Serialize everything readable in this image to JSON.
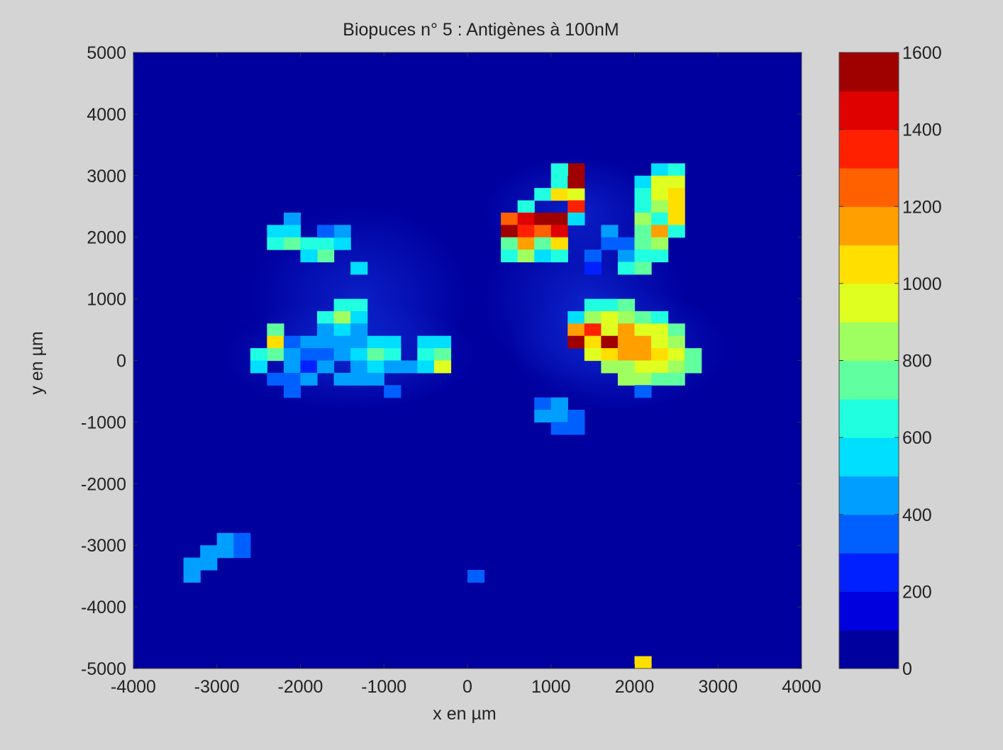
{
  "chart_data": {
    "type": "heatmap",
    "title": "Biopuces n° 5 : Antigènes à 100nM",
    "xlabel": "x en µm",
    "ylabel": "y en µm",
    "xlim": [
      -4000,
      4000
    ],
    "ylim": [
      -5000,
      5000
    ],
    "xticks": [
      -4000,
      -3000,
      -2000,
      -1000,
      0,
      1000,
      2000,
      3000,
      4000
    ],
    "yticks": [
      -5000,
      -4000,
      -3000,
      -2000,
      -1000,
      0,
      1000,
      2000,
      3000,
      4000,
      5000
    ],
    "colorbar": {
      "min": 0,
      "max": 1600,
      "levels": 16,
      "ticks": [
        0,
        200,
        400,
        600,
        800,
        1000,
        1200,
        1400,
        1600
      ],
      "colormap": "jet"
    },
    "background_value": 40,
    "cell_size_um": 200,
    "cells": [
      [
        -2100,
        2300,
        450
      ],
      [
        -2100,
        2100,
        550
      ],
      [
        -2300,
        2100,
        500
      ],
      [
        -2300,
        1900,
        600
      ],
      [
        -2100,
        1900,
        700
      ],
      [
        -1900,
        1900,
        600
      ],
      [
        -1700,
        1900,
        650
      ],
      [
        -1500,
        1900,
        550
      ],
      [
        -1700,
        1700,
        750
      ],
      [
        -1900,
        1700,
        550
      ],
      [
        -1500,
        2100,
        400
      ],
      [
        -1300,
        1500,
        500
      ],
      [
        -1700,
        2100,
        300
      ],
      [
        -2300,
        500,
        700
      ],
      [
        -2300,
        300,
        1000
      ],
      [
        -2300,
        100,
        700
      ],
      [
        -2500,
        100,
        650
      ],
      [
        -2500,
        -100,
        500
      ],
      [
        -2100,
        300,
        350
      ],
      [
        -2100,
        100,
        450
      ],
      [
        -2100,
        -100,
        400
      ],
      [
        -1900,
        300,
        400
      ],
      [
        -1900,
        100,
        350
      ],
      [
        -1900,
        -100,
        200
      ],
      [
        -1700,
        700,
        600
      ],
      [
        -1700,
        500,
        450
      ],
      [
        -1700,
        300,
        400
      ],
      [
        -1700,
        100,
        350
      ],
      [
        -1700,
        -100,
        450
      ],
      [
        -1500,
        900,
        650
      ],
      [
        -1500,
        700,
        800
      ],
      [
        -1500,
        500,
        500
      ],
      [
        -1500,
        300,
        400
      ],
      [
        -1500,
        100,
        400
      ],
      [
        -1300,
        900,
        600
      ],
      [
        -1300,
        700,
        550
      ],
      [
        -1300,
        500,
        400
      ],
      [
        -1300,
        300,
        450
      ],
      [
        -1300,
        100,
        550
      ],
      [
        -1300,
        -100,
        400
      ],
      [
        -1100,
        300,
        550
      ],
      [
        -1100,
        100,
        700
      ],
      [
        -1100,
        -100,
        500
      ],
      [
        -900,
        300,
        550
      ],
      [
        -900,
        100,
        650
      ],
      [
        -900,
        -100,
        450
      ],
      [
        -700,
        -100,
        400
      ],
      [
        -500,
        300,
        500
      ],
      [
        -500,
        100,
        650
      ],
      [
        -500,
        -100,
        500
      ],
      [
        -300,
        300,
        550
      ],
      [
        -300,
        100,
        700
      ],
      [
        -300,
        -100,
        950
      ],
      [
        -1500,
        -300,
        450
      ],
      [
        -1300,
        -300,
        400
      ],
      [
        -1100,
        -300,
        450
      ],
      [
        -900,
        -500,
        350
      ],
      [
        -2300,
        -300,
        350
      ],
      [
        -2100,
        -300,
        350
      ],
      [
        -1900,
        -300,
        400
      ],
      [
        -2100,
        -500,
        300
      ],
      [
        700,
        2500,
        600
      ],
      [
        500,
        2300,
        1250
      ],
      [
        700,
        2300,
        1400
      ],
      [
        900,
        2300,
        1500
      ],
      [
        1100,
        2300,
        1500
      ],
      [
        500,
        2100,
        1550
      ],
      [
        700,
        2100,
        1300
      ],
      [
        900,
        2100,
        1250
      ],
      [
        1100,
        2100,
        1400
      ],
      [
        500,
        1900,
        750
      ],
      [
        700,
        1900,
        1150
      ],
      [
        900,
        1900,
        700
      ],
      [
        1100,
        1900,
        1050
      ],
      [
        500,
        1700,
        600
      ],
      [
        700,
        1700,
        800
      ],
      [
        900,
        1700,
        500
      ],
      [
        1100,
        1700,
        600
      ],
      [
        900,
        2700,
        650
      ],
      [
        1100,
        2700,
        1000
      ],
      [
        1300,
        2700,
        950
      ],
      [
        1100,
        2900,
        600
      ],
      [
        1300,
        3100,
        1550
      ],
      [
        1100,
        3100,
        600
      ],
      [
        1300,
        2900,
        1550
      ],
      [
        1300,
        2500,
        1350
      ],
      [
        1300,
        2300,
        500
      ],
      [
        1700,
        2100,
        400
      ],
      [
        1700,
        1900,
        350
      ],
      [
        1500,
        1700,
        300
      ],
      [
        1500,
        1500,
        250
      ],
      [
        1900,
        1700,
        450
      ],
      [
        1900,
        1500,
        600
      ],
      [
        1900,
        1900,
        350
      ],
      [
        2100,
        2900,
        550
      ],
      [
        2100,
        2700,
        600
      ],
      [
        2100,
        2500,
        650
      ],
      [
        2100,
        2300,
        800
      ],
      [
        2100,
        2100,
        750
      ],
      [
        2100,
        1900,
        700
      ],
      [
        2100,
        1700,
        650
      ],
      [
        2100,
        1500,
        750
      ],
      [
        2300,
        3100,
        550
      ],
      [
        2300,
        2900,
        900
      ],
      [
        2300,
        2700,
        950
      ],
      [
        2300,
        2500,
        800
      ],
      [
        2300,
        2300,
        650
      ],
      [
        2300,
        2100,
        1100
      ],
      [
        2300,
        1900,
        800
      ],
      [
        2300,
        1700,
        600
      ],
      [
        2500,
        3100,
        600
      ],
      [
        2500,
        2900,
        950
      ],
      [
        2500,
        2700,
        1050
      ],
      [
        2500,
        2500,
        1000
      ],
      [
        2500,
        2300,
        1050
      ],
      [
        2500,
        2100,
        650
      ],
      [
        1500,
        900,
        650
      ],
      [
        1700,
        900,
        650
      ],
      [
        1900,
        900,
        700
      ],
      [
        1300,
        700,
        550
      ],
      [
        1500,
        700,
        850
      ],
      [
        1700,
        700,
        900
      ],
      [
        1900,
        700,
        800
      ],
      [
        2100,
        700,
        700
      ],
      [
        2300,
        700,
        600
      ],
      [
        1300,
        500,
        1100
      ],
      [
        1500,
        500,
        1350
      ],
      [
        1700,
        500,
        950
      ],
      [
        1900,
        500,
        1150
      ],
      [
        2100,
        500,
        950
      ],
      [
        2300,
        500,
        900
      ],
      [
        2500,
        500,
        700
      ],
      [
        1300,
        300,
        1500
      ],
      [
        1500,
        300,
        1000
      ],
      [
        1700,
        300,
        1500
      ],
      [
        1900,
        300,
        1150
      ],
      [
        2100,
        300,
        1100
      ],
      [
        2300,
        300,
        950
      ],
      [
        2500,
        300,
        850
      ],
      [
        1500,
        100,
        900
      ],
      [
        1700,
        100,
        1000
      ],
      [
        1900,
        100,
        1150
      ],
      [
        2100,
        100,
        1150
      ],
      [
        2300,
        100,
        1000
      ],
      [
        2500,
        100,
        900
      ],
      [
        2700,
        100,
        750
      ],
      [
        1700,
        -100,
        800
      ],
      [
        1900,
        -100,
        850
      ],
      [
        2100,
        -100,
        900
      ],
      [
        2300,
        -100,
        950
      ],
      [
        2500,
        -100,
        800
      ],
      [
        2700,
        -100,
        700
      ],
      [
        1900,
        -300,
        800
      ],
      [
        2100,
        -300,
        800
      ],
      [
        2300,
        -300,
        700
      ],
      [
        2500,
        -300,
        750
      ],
      [
        2100,
        -500,
        350
      ],
      [
        900,
        -700,
        350
      ],
      [
        1100,
        -700,
        400
      ],
      [
        900,
        -900,
        400
      ],
      [
        1100,
        -900,
        450
      ],
      [
        1300,
        -900,
        350
      ],
      [
        1100,
        -1100,
        350
      ],
      [
        1300,
        -1100,
        350
      ],
      [
        -3300,
        -3300,
        400
      ],
      [
        -3300,
        -3500,
        400
      ],
      [
        -3100,
        -3100,
        400
      ],
      [
        -3100,
        -3300,
        450
      ],
      [
        -2900,
        -2900,
        400
      ],
      [
        -2900,
        -3100,
        400
      ],
      [
        -2700,
        -2900,
        300
      ],
      [
        -2700,
        -3100,
        300
      ],
      [
        100,
        -3500,
        350
      ],
      [
        2100,
        -4900,
        1050
      ]
    ]
  }
}
